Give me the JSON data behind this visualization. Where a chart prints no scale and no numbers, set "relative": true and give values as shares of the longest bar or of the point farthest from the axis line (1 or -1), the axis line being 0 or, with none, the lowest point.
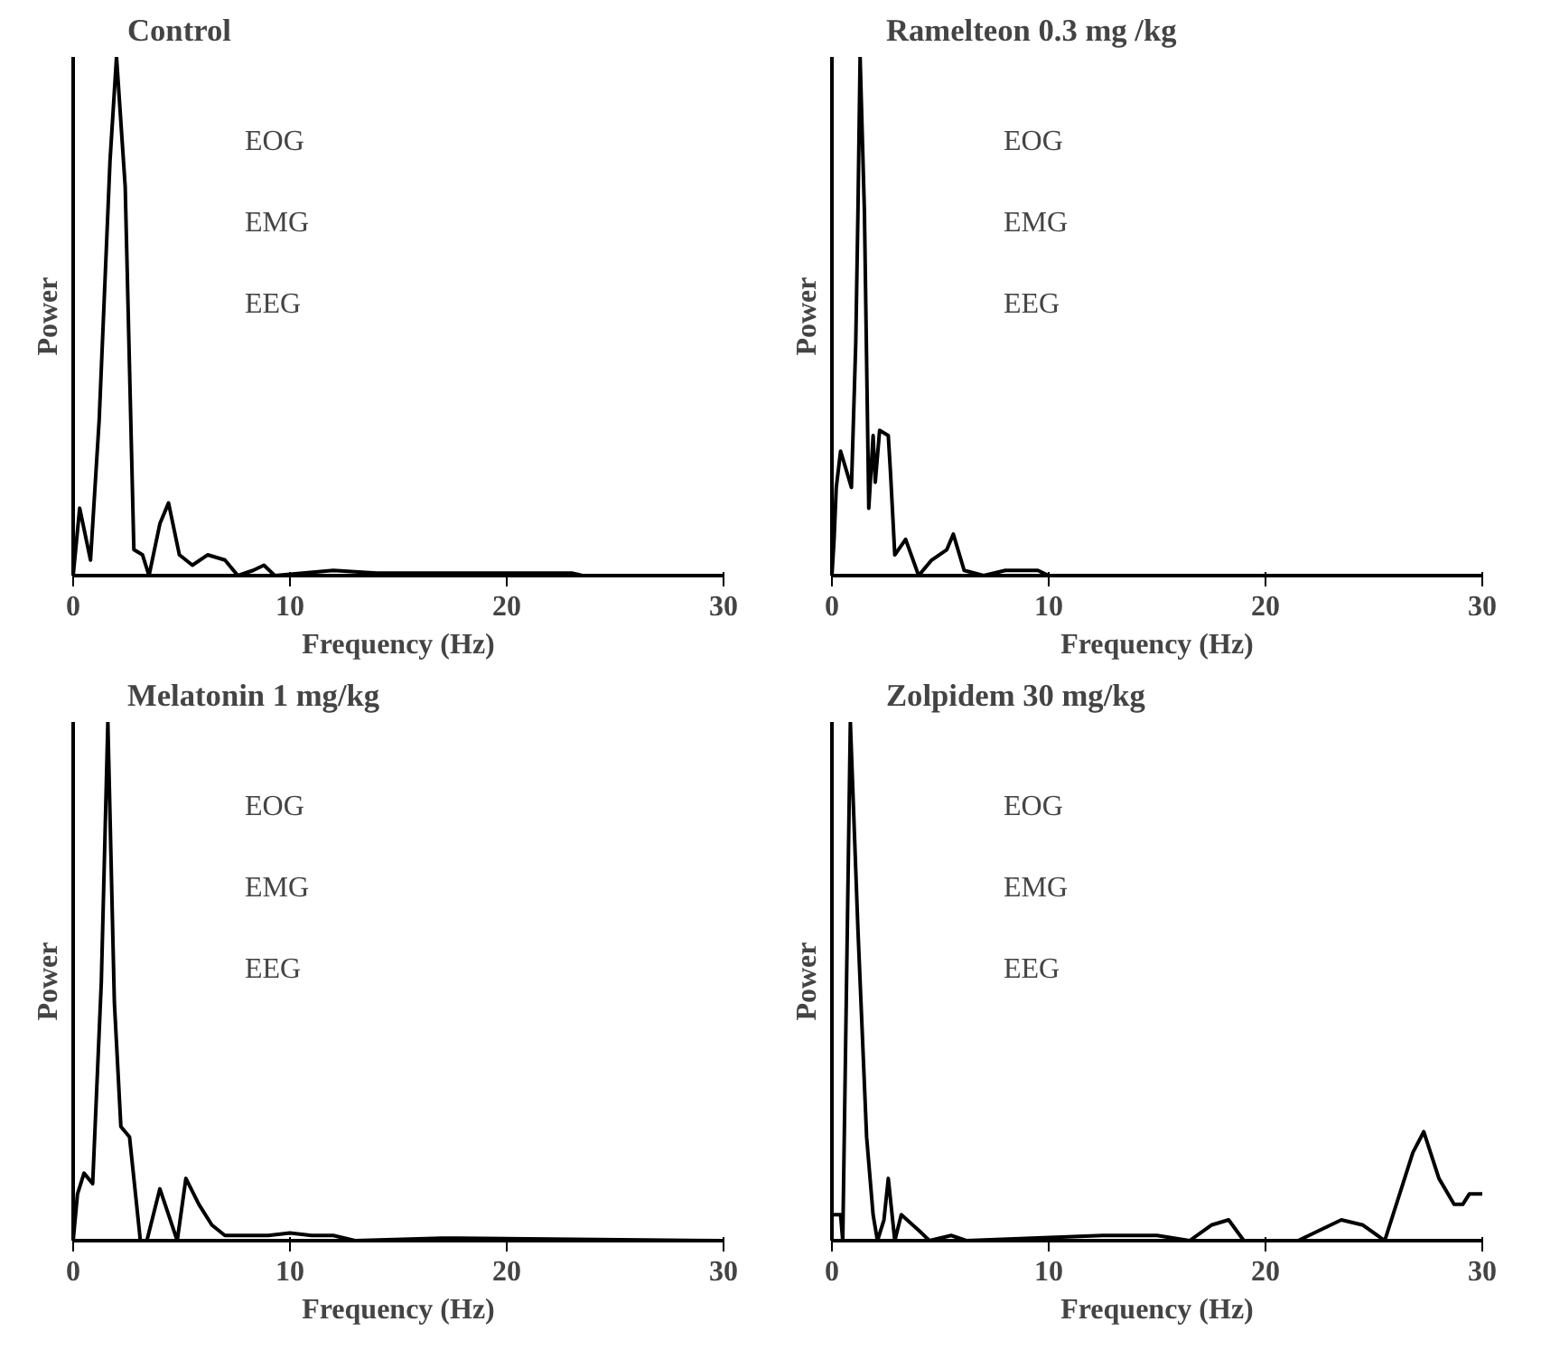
{
  "chart_data": [
    {
      "type": "line",
      "title": "Control",
      "xlabel": "Frequency (Hz)",
      "ylabel": "Power",
      "relative": true,
      "color": "#000000",
      "xlim": [
        0,
        30
      ],
      "xticks": [
        0,
        10,
        20,
        30
      ],
      "annotations": [
        "EOG",
        "EMG",
        "EEG"
      ],
      "x": [
        0,
        0.3,
        0.8,
        1.2,
        1.7,
        2.0,
        2.4,
        2.8,
        3.2,
        3.5,
        4.0,
        4.4,
        4.9,
        5.5,
        6.2,
        7.0,
        7.6,
        8.3,
        8.8,
        9.3,
        12,
        14,
        20,
        23,
        23.5
      ],
      "values": [
        0,
        0.13,
        0.03,
        0.3,
        0.8,
        1.0,
        0.75,
        0.05,
        0.04,
        0.0,
        0.1,
        0.14,
        0.04,
        0.02,
        0.04,
        0.03,
        0.0,
        0.01,
        0.02,
        0.0,
        0.01,
        0.005,
        0.005,
        0.005,
        0
      ]
    },
    {
      "type": "line",
      "title": "Ramelteon 0.3 mg /kg",
      "xlabel": "Frequency (Hz)",
      "ylabel": "Power",
      "relative": true,
      "color": "#000000",
      "xlim": [
        0,
        30
      ],
      "xticks": [
        0,
        10,
        20,
        30
      ],
      "annotations": [
        "EOG",
        "EMG",
        "EEG"
      ],
      "x": [
        0,
        0.1,
        0.2,
        0.4,
        0.9,
        1.1,
        1.2,
        1.3,
        1.5,
        1.7,
        1.9,
        2.0,
        2.2,
        2.6,
        2.7,
        2.9,
        3.4,
        4.0,
        4.6,
        5.3,
        5.6,
        6.1,
        7,
        8,
        9.5,
        10,
        30
      ],
      "values": [
        0,
        0.07,
        0.17,
        0.24,
        0.17,
        0.45,
        0.7,
        1.0,
        0.7,
        0.13,
        0.27,
        0.18,
        0.28,
        0.27,
        0.2,
        0.04,
        0.07,
        0.0,
        0.03,
        0.05,
        0.08,
        0.01,
        0,
        0.01,
        0.01,
        0,
        0
      ]
    },
    {
      "type": "line",
      "title": "Melatonin 1 mg/kg",
      "xlabel": "Frequency (Hz)",
      "ylabel": "Power",
      "relative": true,
      "color": "#000000",
      "xlim": [
        0,
        30
      ],
      "xticks": [
        0,
        10,
        20,
        30
      ],
      "annotations": [
        "EOG",
        "EMG",
        "EEG"
      ],
      "x": [
        0,
        0.2,
        0.5,
        0.9,
        1.3,
        1.6,
        1.9,
        2.2,
        2.6,
        3.1,
        3.4,
        4.0,
        4.8,
        5.2,
        5.8,
        6.4,
        7.0,
        8,
        9,
        10,
        11,
        12,
        13,
        17,
        30
      ],
      "values": [
        0,
        0.09,
        0.13,
        0.11,
        0.5,
        1.0,
        0.46,
        0.22,
        0.2,
        0.0,
        0.0,
        0.1,
        0.0,
        0.12,
        0.07,
        0.03,
        0.01,
        0.01,
        0.01,
        0.015,
        0.01,
        0.01,
        0,
        0.005,
        0
      ]
    },
    {
      "type": "line",
      "title": "Zolpidem 30 mg/kg",
      "xlabel": "Frequency (Hz)",
      "ylabel": "Power",
      "relative": true,
      "color": "#000000",
      "xlim": [
        0,
        30
      ],
      "xticks": [
        0,
        10,
        20,
        30
      ],
      "annotations": [
        "EOG",
        "EMG",
        "EEG"
      ],
      "x": [
        0,
        0.4,
        0.5,
        0.85,
        1.2,
        1.6,
        1.9,
        2.1,
        2.4,
        2.6,
        2.9,
        3.2,
        4,
        4.5,
        5.5,
        6.2,
        12.5,
        15,
        16.5,
        17.5,
        18.3,
        19,
        21.5,
        22.5,
        23.5,
        24.5,
        25.5,
        26.8,
        27.3,
        28,
        28.7,
        29.1,
        29.4,
        30
      ],
      "values": [
        0.05,
        0.05,
        0.0,
        1.0,
        0.6,
        0.2,
        0.05,
        0.0,
        0.04,
        0.12,
        0.0,
        0.05,
        0.02,
        0.0,
        0.01,
        0.0,
        0.01,
        0.01,
        0.0,
        0.03,
        0.04,
        0.0,
        0,
        0.02,
        0.04,
        0.03,
        0,
        0.17,
        0.21,
        0.12,
        0.07,
        0.07,
        0.09,
        0.09
      ]
    }
  ]
}
